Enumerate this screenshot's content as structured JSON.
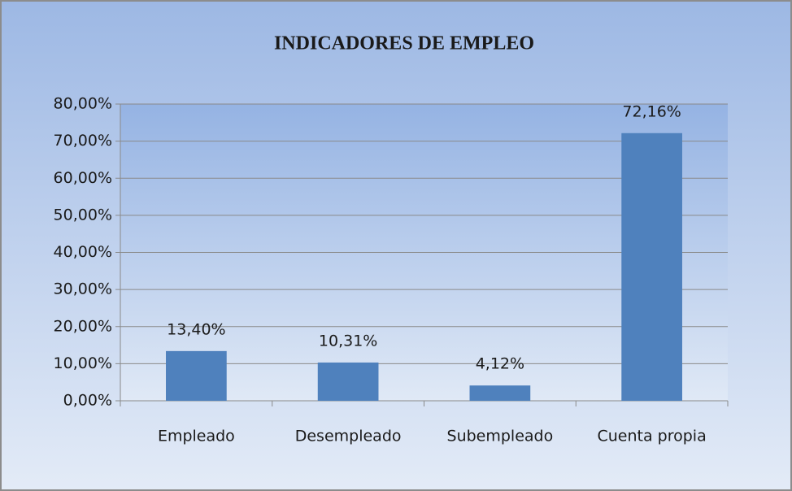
{
  "chart_data": {
    "type": "bar",
    "title": "INDICADORES DE EMPLEO",
    "categories": [
      "Empleado",
      "Desempleado",
      "Subempleado",
      "Cuenta propia"
    ],
    "values": [
      13.4,
      10.31,
      4.12,
      72.16
    ],
    "value_labels": [
      "13,40%",
      "10,31%",
      "4,12%",
      "72,16%"
    ],
    "color": "#4f81bd",
    "ylim": [
      0,
      80
    ],
    "yticks": [
      {
        "value": 0,
        "label": "0,00%"
      },
      {
        "value": 10,
        "label": "10,00%"
      },
      {
        "value": 20,
        "label": "20,00%"
      },
      {
        "value": 30,
        "label": "30,00%"
      },
      {
        "value": 40,
        "label": "40,00%"
      },
      {
        "value": 50,
        "label": "50,00%"
      },
      {
        "value": 60,
        "label": "60,00%"
      },
      {
        "value": 70,
        "label": "70,00%"
      },
      {
        "value": 80,
        "label": "80,00%"
      }
    ],
    "grid": true
  }
}
